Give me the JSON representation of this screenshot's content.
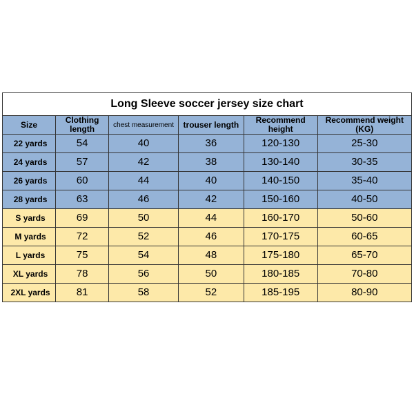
{
  "title": "Long Sleeve soccer jersey size chart",
  "columns": [
    "Size",
    "Clothing length",
    "chest measurement",
    "trouser length",
    "Recommend height",
    "Recommend weight (KG)"
  ],
  "col_widths_pct": [
    13,
    13,
    17,
    16,
    18,
    23
  ],
  "rows": [
    {
      "group": "blue",
      "cells": [
        "22 yards",
        "54",
        "40",
        "36",
        "120-130",
        "25-30"
      ]
    },
    {
      "group": "blue",
      "cells": [
        "24 yards",
        "57",
        "42",
        "38",
        "130-140",
        "30-35"
      ]
    },
    {
      "group": "blue",
      "cells": [
        "26 yards",
        "60",
        "44",
        "40",
        "140-150",
        "35-40"
      ]
    },
    {
      "group": "blue",
      "cells": [
        "28 yards",
        "63",
        "46",
        "42",
        "150-160",
        "40-50"
      ]
    },
    {
      "group": "yellow",
      "cells": [
        "S yards",
        "69",
        "50",
        "44",
        "160-170",
        "50-60"
      ]
    },
    {
      "group": "yellow",
      "cells": [
        "M yards",
        "72",
        "52",
        "46",
        "170-175",
        "60-65"
      ]
    },
    {
      "group": "yellow",
      "cells": [
        "L yards",
        "75",
        "54",
        "48",
        "175-180",
        "65-70"
      ]
    },
    {
      "group": "yellow",
      "cells": [
        "XL yards",
        "78",
        "56",
        "50",
        "180-185",
        "70-80"
      ]
    },
    {
      "group": "yellow",
      "cells": [
        "2XL yards",
        "81",
        "58",
        "52",
        "185-195",
        "80-90"
      ]
    }
  ],
  "colors": {
    "blue": "#95b3d7",
    "yellow": "#fde9a9",
    "border": "#333333",
    "bg": "#ffffff"
  }
}
